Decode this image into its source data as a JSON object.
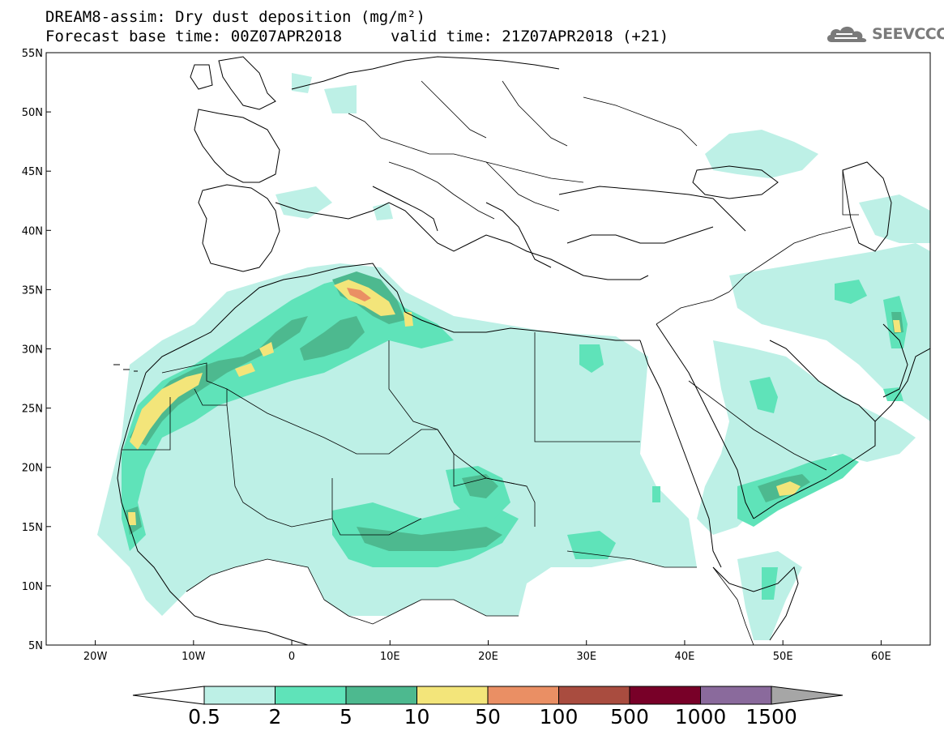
{
  "title": {
    "line1": "DREAM8-assim: Dry dust deposition (mg/m²)",
    "line2a": "Forecast base time: 00Z07APR2018",
    "line2b": "valid time: 21Z07APR2018 (+21)"
  },
  "logo": {
    "text": "SEEVCCC",
    "icon": "cloud-icon"
  },
  "axes": {
    "lat_labels": [
      "55N",
      "50N",
      "45N",
      "40N",
      "35N",
      "30N",
      "25N",
      "20N",
      "15N",
      "10N",
      "5N"
    ],
    "lon_labels": [
      "20W",
      "10W",
      "0",
      "10E",
      "20E",
      "30E",
      "40E",
      "50E",
      "60E"
    ],
    "lat_range": [
      5,
      55
    ],
    "lon_range": [
      -25,
      65
    ]
  },
  "colorbar": {
    "labels": [
      "0.5",
      "2",
      "5",
      "10",
      "50",
      "100",
      "500",
      "1000",
      "1500"
    ],
    "colors": [
      "#bdf0e6",
      "#5fe3b9",
      "#4db98f",
      "#f3e57a",
      "#ea8f64",
      "#a94c3f",
      "#780028",
      "#8a6a9c"
    ],
    "under_color": "#ffffff",
    "over_color": "#a6a6a6"
  }
}
